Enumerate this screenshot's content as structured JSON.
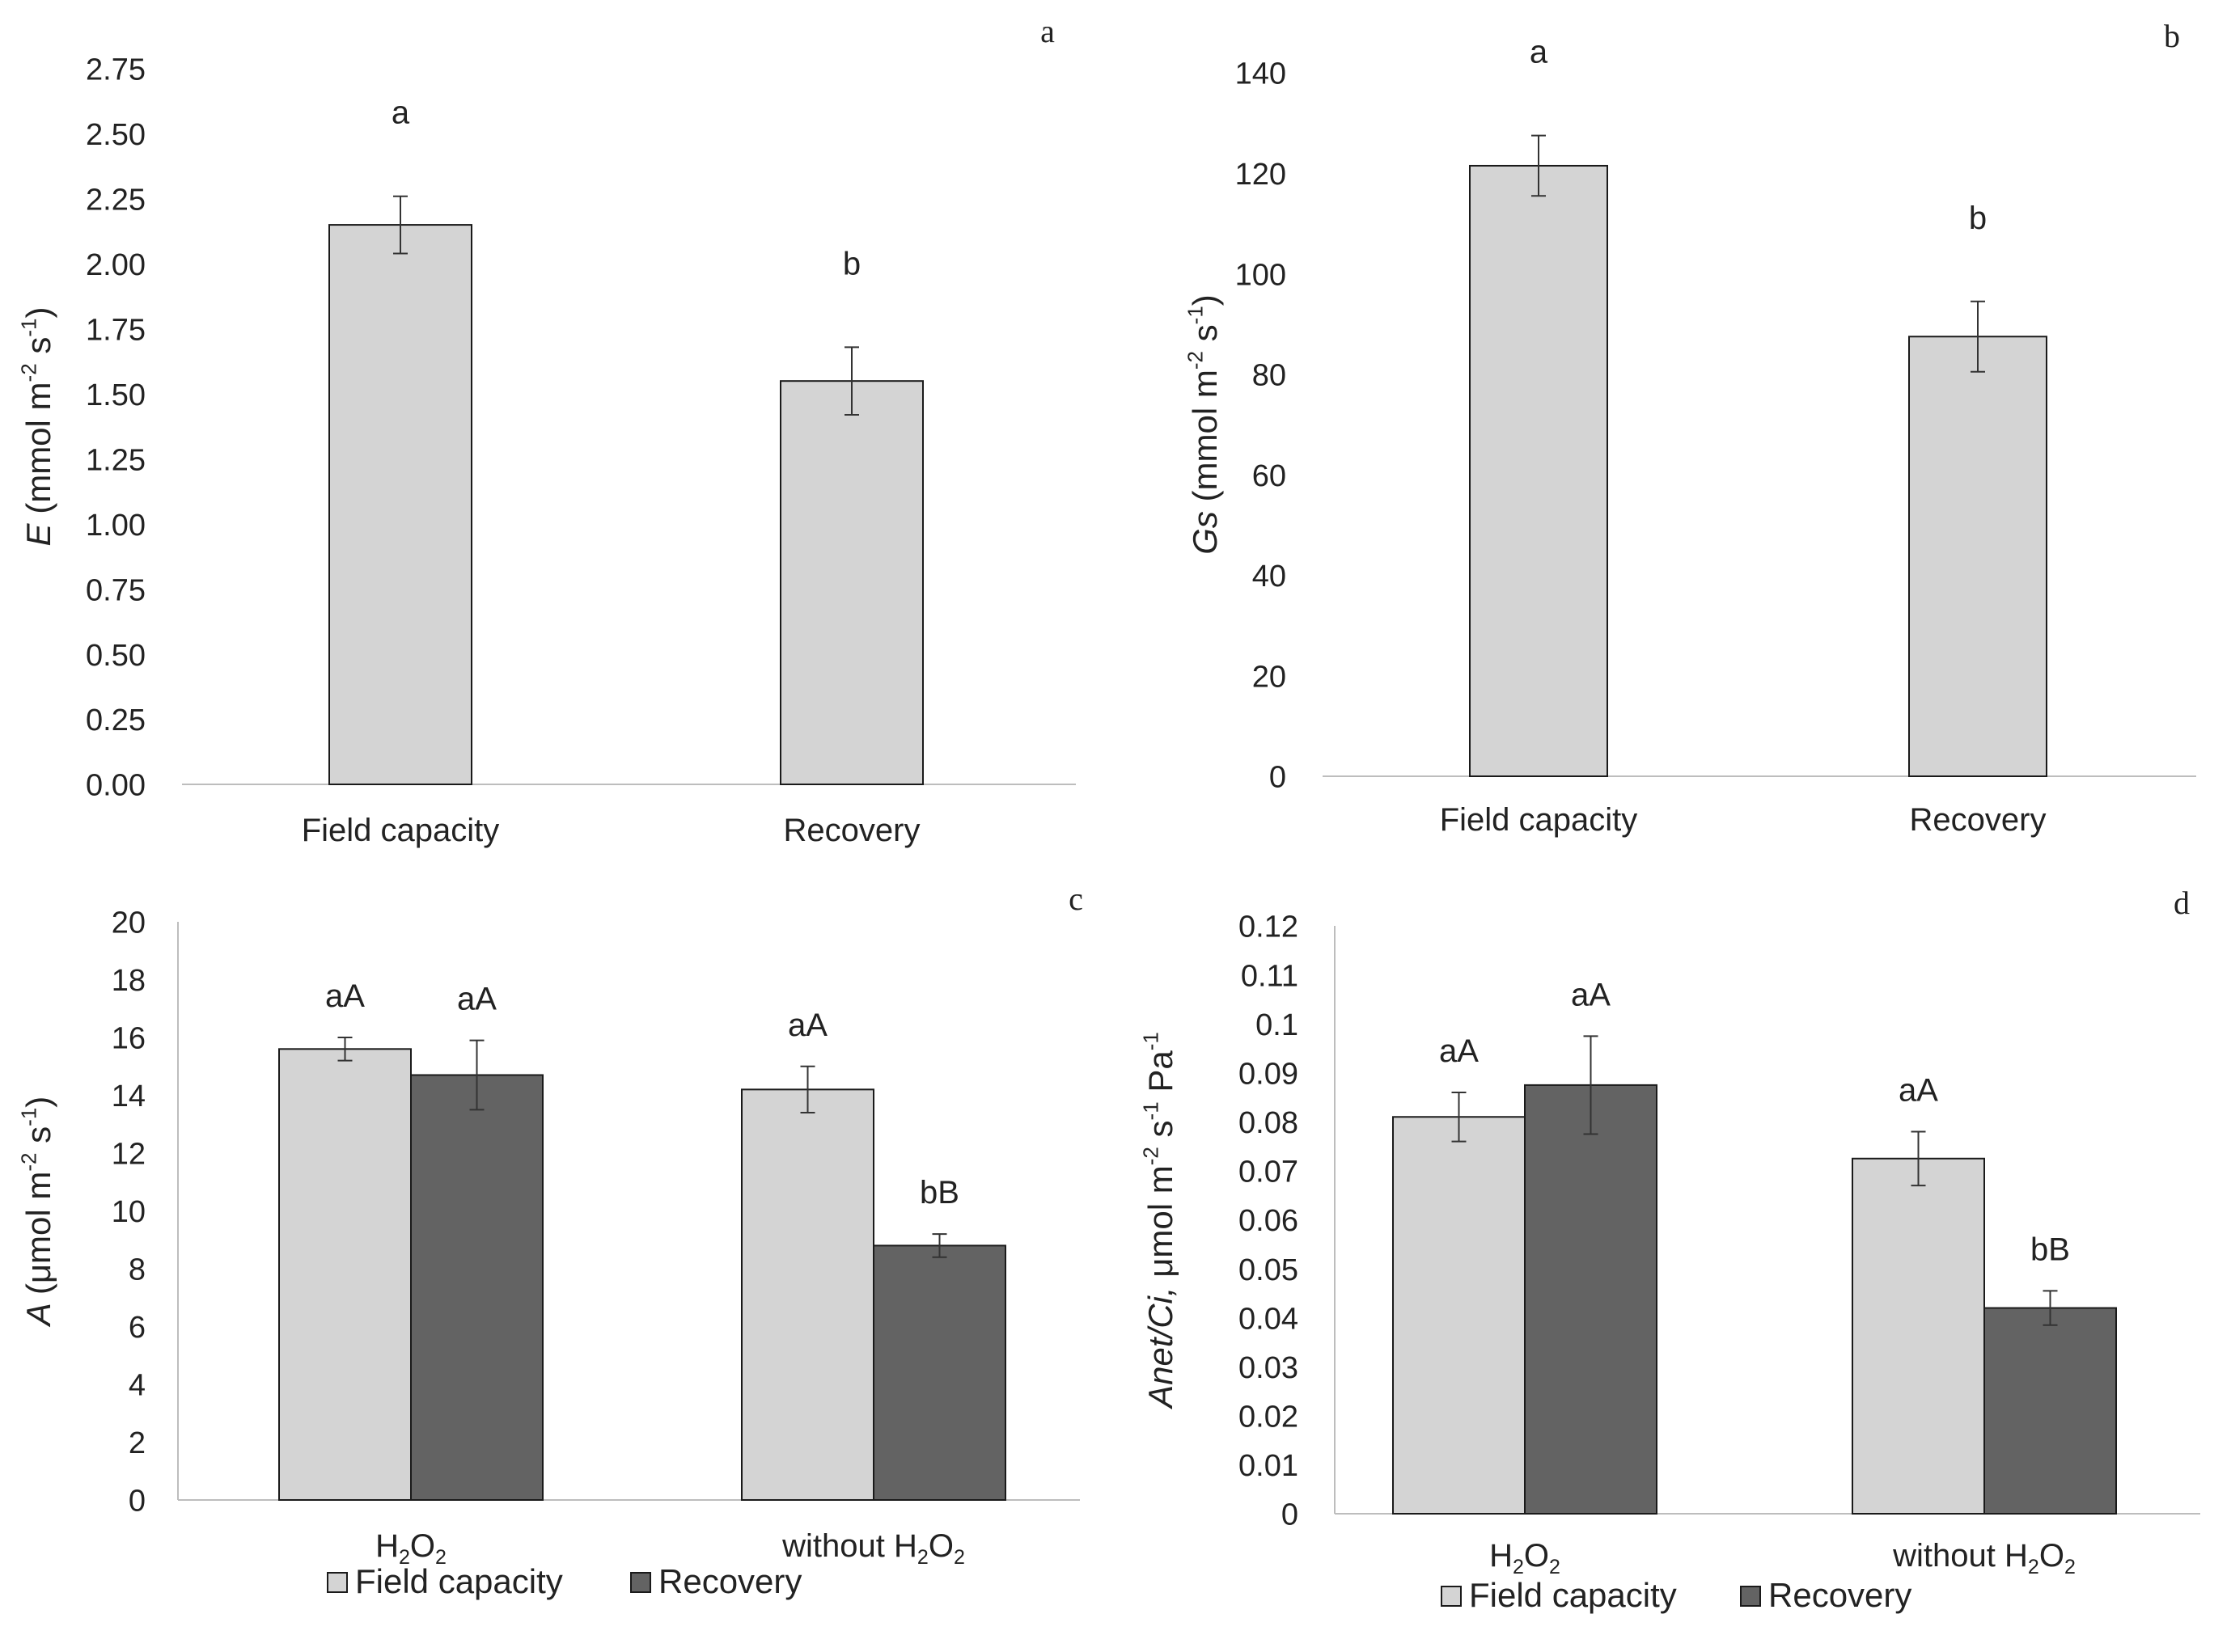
{
  "colors": {
    "field_capacity": "#d4d4d4",
    "recovery_e_gs": "#808080",
    "recovery_a_anet": "#636363",
    "axis": "#bdbdbd",
    "text": "#222222"
  },
  "chart_data": [
    {
      "panel": "a",
      "type": "bar",
      "ylabel_italic": "E",
      "ylabel_text": "(mmol m-2 s-1)",
      "categories": [
        "Field capacity",
        "Recovery"
      ],
      "series": [
        {
          "name": "E",
          "values": [
            2.15,
            1.55
          ],
          "errors": [
            0.11,
            0.13
          ],
          "letters": [
            "a",
            "b"
          ]
        }
      ],
      "ylim": [
        0,
        2.75
      ],
      "yticks": [
        "0.00",
        "0.25",
        "0.50",
        "0.75",
        "1.00",
        "1.25",
        "1.50",
        "1.75",
        "2.00",
        "2.25",
        "2.50",
        "2.75"
      ],
      "legend": false
    },
    {
      "panel": "b",
      "type": "bar",
      "ylabel_italic": "Gs",
      "ylabel_text": "(mmol m-2 s-1)",
      "categories": [
        "Field capacity",
        "Recovery"
      ],
      "series": [
        {
          "name": "Gs",
          "values": [
            121.5,
            87.5
          ],
          "errors": [
            6,
            7
          ],
          "letters": [
            "a",
            "b"
          ]
        }
      ],
      "ylim": [
        0,
        140
      ],
      "yticks": [
        "0",
        "20",
        "40",
        "60",
        "80",
        "100",
        "120",
        "140"
      ],
      "legend": false
    },
    {
      "panel": "c",
      "type": "bar",
      "ylabel_italic": "A",
      "ylabel_text": "(μmol m-2 s-1)",
      "categories": [
        "H2O2",
        "without  H2O2"
      ],
      "series": [
        {
          "name": "Field capacity",
          "values": [
            15.6,
            14.2
          ],
          "errors": [
            0.4,
            0.8
          ],
          "letters": [
            "aA",
            "aA"
          ]
        },
        {
          "name": "Recovery",
          "values": [
            14.7,
            8.8
          ],
          "errors": [
            1.2,
            0.4
          ],
          "letters": [
            "aA",
            "bB"
          ]
        }
      ],
      "ylim": [
        0,
        20
      ],
      "yticks": [
        "0",
        "2",
        "4",
        "6",
        "8",
        "10",
        "12",
        "14",
        "16",
        "18",
        "20"
      ],
      "legend": true,
      "legend_position": "bottom"
    },
    {
      "panel": "d",
      "type": "bar",
      "ylabel_italic": "Anet/Ci,",
      "ylabel_text": "μmol m-2 s-1 Pa-1",
      "categories": [
        "H2O2",
        "without  H2O2"
      ],
      "series": [
        {
          "name": "Field capacity",
          "values": [
            0.081,
            0.0725
          ],
          "errors": [
            0.005,
            0.0055
          ],
          "letters": [
            "aA",
            "aA"
          ]
        },
        {
          "name": "Recovery",
          "values": [
            0.0875,
            0.042
          ],
          "errors": [
            0.01,
            0.0035
          ],
          "letters": [
            "aA",
            "bB"
          ]
        }
      ],
      "ylim": [
        0,
        0.12
      ],
      "yticks": [
        "0",
        "0.01",
        "0.02",
        "0.03",
        "0.04",
        "0.05",
        "0.06",
        "0.07",
        "0.08",
        "0.09",
        "0.1",
        "0.11",
        "0.12"
      ],
      "legend": true,
      "legend_position": "bottom"
    }
  ]
}
